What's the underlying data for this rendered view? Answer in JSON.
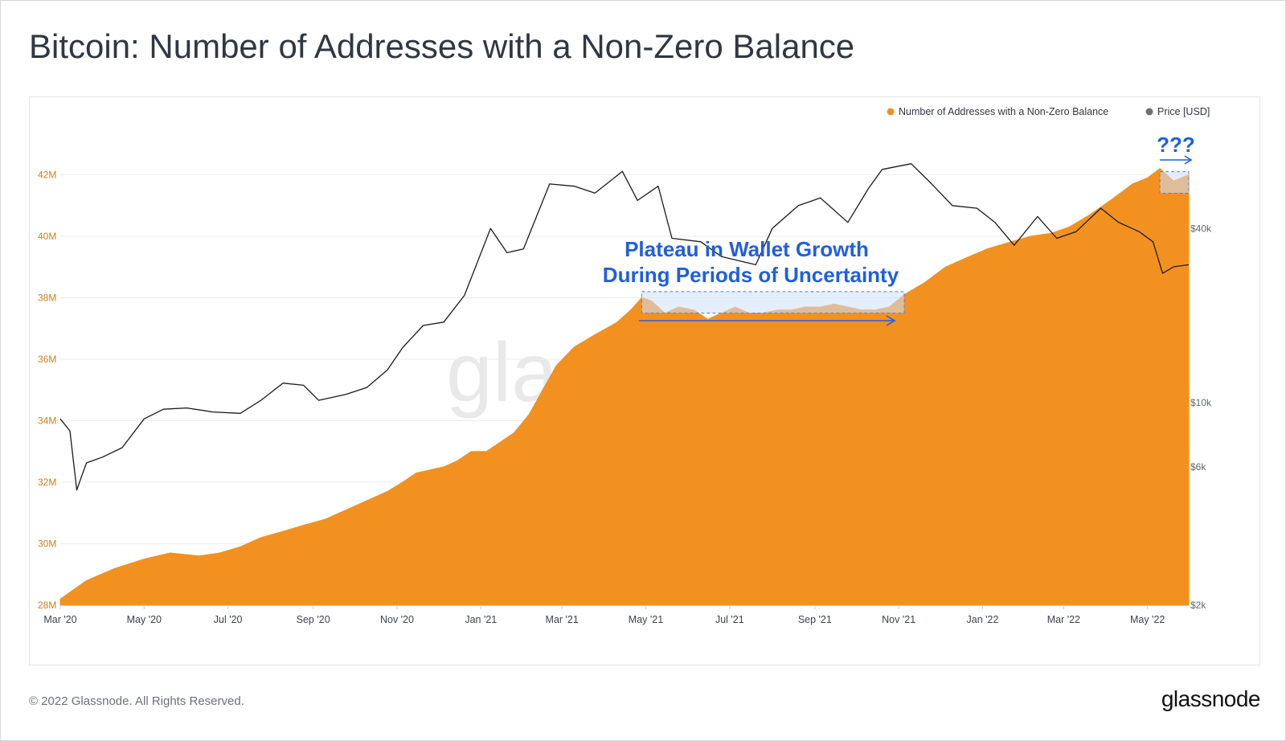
{
  "page": {
    "title": "Bitcoin: Number of Addresses with a Non-Zero Balance",
    "copyright": "© 2022 Glassnode. All Rights Reserved.",
    "logo_text": "glassnode",
    "watermark_text": "glassnode"
  },
  "colors": {
    "addresses": "#f39120",
    "price": "#1a1a1a",
    "annotation": "#1f5fe0",
    "highlight_fill": "#cfe0fb",
    "grid": "#ececec"
  },
  "chart_data": {
    "type": "area",
    "title": "Bitcoin: Number of Addresses with a Non-Zero Balance",
    "x_tick_labels": [
      "Mar '20",
      "May '20",
      "Jul '20",
      "Sep '20",
      "Nov '20",
      "Jan '21",
      "Mar '21",
      "May '21",
      "Jul '21",
      "Sep '21",
      "Nov '21",
      "Jan '22",
      "Mar '22",
      "May '22"
    ],
    "x_range": [
      "2020-03-01",
      "2022-05-31"
    ],
    "left_axis": {
      "unit": "M",
      "range": [
        28,
        44
      ],
      "tick_values": [
        28,
        30,
        32,
        34,
        36,
        38,
        40,
        42
      ],
      "tick_labels": [
        "28M",
        "30M",
        "32M",
        "34M",
        "36M",
        "38M",
        "40M",
        "42M"
      ]
    },
    "right_axis": {
      "scale": "log",
      "range": [
        2000,
        100000
      ],
      "tick_values": [
        2000,
        6000,
        10000,
        40000
      ],
      "tick_labels": [
        "$2k",
        "$6k",
        "$10k",
        "$40k"
      ]
    },
    "grid": true,
    "legend_position": "top-right",
    "series": [
      {
        "name": "Number of Addresses with a Non-Zero Balance",
        "axis": "left",
        "style": "area",
        "color": "#f39120",
        "points": [
          [
            "2020-03-01",
            28.2
          ],
          [
            "2020-03-20",
            28.8
          ],
          [
            "2020-04-10",
            29.2
          ],
          [
            "2020-05-01",
            29.5
          ],
          [
            "2020-05-20",
            29.7
          ],
          [
            "2020-06-10",
            29.6
          ],
          [
            "2020-06-25",
            29.7
          ],
          [
            "2020-07-10",
            29.9
          ],
          [
            "2020-07-25",
            30.2
          ],
          [
            "2020-08-10",
            30.4
          ],
          [
            "2020-08-25",
            30.6
          ],
          [
            "2020-09-10",
            30.8
          ],
          [
            "2020-09-25",
            31.1
          ],
          [
            "2020-10-10",
            31.4
          ],
          [
            "2020-10-25",
            31.7
          ],
          [
            "2020-11-05",
            32.0
          ],
          [
            "2020-11-15",
            32.3
          ],
          [
            "2020-11-25",
            32.4
          ],
          [
            "2020-12-05",
            32.5
          ],
          [
            "2020-12-15",
            32.7
          ],
          [
            "2020-12-25",
            33.0
          ],
          [
            "2021-01-05",
            33.0
          ],
          [
            "2021-01-15",
            33.3
          ],
          [
            "2021-01-25",
            33.6
          ],
          [
            "2021-02-05",
            34.2
          ],
          [
            "2021-02-15",
            35.0
          ],
          [
            "2021-02-25",
            35.8
          ],
          [
            "2021-03-10",
            36.4
          ],
          [
            "2021-03-25",
            36.8
          ],
          [
            "2021-04-10",
            37.2
          ],
          [
            "2021-04-20",
            37.6
          ],
          [
            "2021-04-28",
            38.0
          ],
          [
            "2021-05-05",
            37.9
          ],
          [
            "2021-05-15",
            37.5
          ],
          [
            "2021-05-25",
            37.7
          ],
          [
            "2021-06-05",
            37.6
          ],
          [
            "2021-06-15",
            37.3
          ],
          [
            "2021-06-25",
            37.5
          ],
          [
            "2021-07-05",
            37.7
          ],
          [
            "2021-07-15",
            37.5
          ],
          [
            "2021-07-25",
            37.5
          ],
          [
            "2021-08-05",
            37.6
          ],
          [
            "2021-08-15",
            37.6
          ],
          [
            "2021-08-25",
            37.7
          ],
          [
            "2021-09-05",
            37.7
          ],
          [
            "2021-09-15",
            37.8
          ],
          [
            "2021-09-25",
            37.7
          ],
          [
            "2021-10-05",
            37.6
          ],
          [
            "2021-10-15",
            37.6
          ],
          [
            "2021-10-25",
            37.7
          ],
          [
            "2021-11-05",
            38.1
          ],
          [
            "2021-11-20",
            38.5
          ],
          [
            "2021-12-05",
            39.0
          ],
          [
            "2021-12-20",
            39.3
          ],
          [
            "2022-01-05",
            39.6
          ],
          [
            "2022-01-20",
            39.8
          ],
          [
            "2022-02-05",
            40.0
          ],
          [
            "2022-02-20",
            40.1
          ],
          [
            "2022-03-05",
            40.3
          ],
          [
            "2022-03-20",
            40.7
          ],
          [
            "2022-04-05",
            41.2
          ],
          [
            "2022-04-20",
            41.7
          ],
          [
            "2022-05-01",
            41.9
          ],
          [
            "2022-05-10",
            42.2
          ],
          [
            "2022-05-20",
            41.8
          ],
          [
            "2022-05-31",
            42.0
          ]
        ]
      },
      {
        "name": "Price [USD]",
        "axis": "right",
        "style": "line",
        "color": "#1a1a1a",
        "points": [
          [
            "2020-03-01",
            8800
          ],
          [
            "2020-03-08",
            8000
          ],
          [
            "2020-03-13",
            5000
          ],
          [
            "2020-03-20",
            6200
          ],
          [
            "2020-04-01",
            6500
          ],
          [
            "2020-04-15",
            7000
          ],
          [
            "2020-05-01",
            8800
          ],
          [
            "2020-05-15",
            9500
          ],
          [
            "2020-06-01",
            9600
          ],
          [
            "2020-06-20",
            9300
          ],
          [
            "2020-07-10",
            9200
          ],
          [
            "2020-07-25",
            10200
          ],
          [
            "2020-08-10",
            11700
          ],
          [
            "2020-08-25",
            11500
          ],
          [
            "2020-09-05",
            10200
          ],
          [
            "2020-09-25",
            10700
          ],
          [
            "2020-10-10",
            11300
          ],
          [
            "2020-10-25",
            13000
          ],
          [
            "2020-11-05",
            15500
          ],
          [
            "2020-11-20",
            18500
          ],
          [
            "2020-12-05",
            19000
          ],
          [
            "2020-12-20",
            23500
          ],
          [
            "2021-01-08",
            40000
          ],
          [
            "2021-01-20",
            33000
          ],
          [
            "2021-02-01",
            34000
          ],
          [
            "2021-02-20",
            57000
          ],
          [
            "2021-03-10",
            56000
          ],
          [
            "2021-03-25",
            53000
          ],
          [
            "2021-04-14",
            63000
          ],
          [
            "2021-04-25",
            50000
          ],
          [
            "2021-05-10",
            56000
          ],
          [
            "2021-05-20",
            37000
          ],
          [
            "2021-06-10",
            36000
          ],
          [
            "2021-06-25",
            32000
          ],
          [
            "2021-07-20",
            30000
          ],
          [
            "2021-08-01",
            40000
          ],
          [
            "2021-08-20",
            48000
          ],
          [
            "2021-09-05",
            51000
          ],
          [
            "2021-09-25",
            42000
          ],
          [
            "2021-10-10",
            55000
          ],
          [
            "2021-10-20",
            64000
          ],
          [
            "2021-11-10",
            67000
          ],
          [
            "2021-11-25",
            57000
          ],
          [
            "2021-12-10",
            48000
          ],
          [
            "2021-12-28",
            47000
          ],
          [
            "2022-01-10",
            42000
          ],
          [
            "2022-01-24",
            35000
          ],
          [
            "2022-02-10",
            44000
          ],
          [
            "2022-02-24",
            37000
          ],
          [
            "2022-03-10",
            39000
          ],
          [
            "2022-03-28",
            47000
          ],
          [
            "2022-04-10",
            42000
          ],
          [
            "2022-04-25",
            39000
          ],
          [
            "2022-05-05",
            36000
          ],
          [
            "2022-05-12",
            28000
          ],
          [
            "2022-05-20",
            29500
          ],
          [
            "2022-05-31",
            30000
          ]
        ]
      }
    ],
    "annotations": [
      {
        "text_lines": [
          "Plateau in Wallet Growth",
          "During Periods of Uncertainty"
        ],
        "from": "2021-04-28",
        "to": "2021-11-05",
        "range": [
          37.5,
          38.2
        ]
      },
      {
        "text": "???",
        "from": "2022-05-10",
        "to": "2022-05-31",
        "range": [
          41.4,
          42.1
        ]
      }
    ]
  },
  "legend": {
    "items": [
      {
        "label": "Number of Addresses with a Non-Zero Balance",
        "color": "#f39120"
      },
      {
        "label": "Price [USD]",
        "color": "#707070"
      }
    ]
  },
  "annotation_text": {
    "plateau_line_1": "Plateau in Wallet Growth",
    "plateau_line_2": "During Periods of Uncertainty",
    "question": "???"
  }
}
